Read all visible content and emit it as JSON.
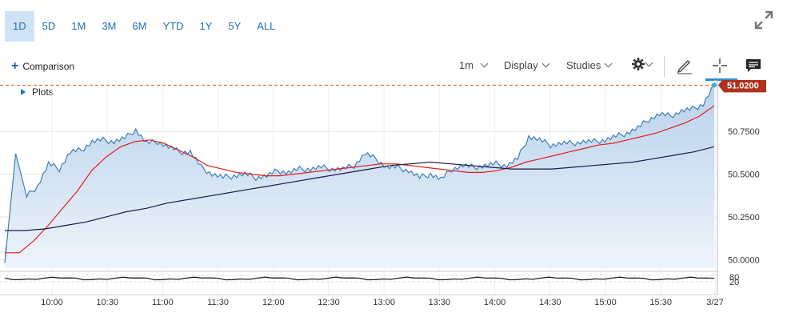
{
  "ranges": [
    "1D",
    "5D",
    "1M",
    "3M",
    "6M",
    "YTD",
    "1Y",
    "5Y",
    "ALL"
  ],
  "active_range": "1D",
  "toolbar": {
    "comparison_label": "Comparison",
    "interval_label": "1m",
    "display_label": "Display",
    "studies_label": "Studies"
  },
  "plots_label": "Plots",
  "price_badge": "51.0200",
  "y_ticks": [
    "50.7500",
    "50.5000",
    "50.2500",
    "50.0000"
  ],
  "lower_ticks": [
    "80",
    "20"
  ],
  "x_ticks": [
    "10:00",
    "10:30",
    "11:00",
    "11:30",
    "12:00",
    "12:30",
    "13:00",
    "13:30",
    "14:00",
    "14:30",
    "15:00",
    "15:30",
    "3/27"
  ],
  "colors": {
    "accent": "#2b8fd6",
    "price_line": "#3d7fb8",
    "ma_fast": "#e0201b",
    "ma_slow": "#1b1b4a",
    "badge": "#b0321c"
  },
  "chart_data": {
    "type": "area",
    "ylim": [
      49.95,
      51.05
    ],
    "last_price": 51.02,
    "series": [
      {
        "x": [
          "9:30",
          "9:36",
          "9:42",
          "9:48",
          "9:54",
          "10:00",
          "10:06",
          "10:12",
          "10:18",
          "10:24",
          "10:30",
          "10:36",
          "10:42",
          "10:48",
          "10:54",
          "11:00",
          "11:06",
          "11:12",
          "11:18",
          "11:24",
          "11:30",
          "11:36",
          "11:42",
          "11:48",
          "11:54",
          "12:00",
          "12:06",
          "12:12",
          "12:18",
          "12:24",
          "12:30",
          "12:36",
          "12:42",
          "12:48",
          "12:54",
          "13:00",
          "13:06",
          "13:12",
          "13:18",
          "13:24",
          "13:30",
          "13:36",
          "13:42",
          "13:48",
          "13:54",
          "14:00",
          "14:06",
          "14:12",
          "14:18",
          "14:24",
          "14:30",
          "14:36",
          "14:42",
          "14:48",
          "14:54",
          "15:00",
          "15:06",
          "15:12",
          "15:18",
          "15:24",
          "15:30",
          "15:36",
          "15:42",
          "15:48",
          "15:54",
          "16:00"
        ],
        "values": [
          49.98,
          50.62,
          50.37,
          50.43,
          50.56,
          50.53,
          50.63,
          50.64,
          50.69,
          50.7,
          50.69,
          50.71,
          50.76,
          50.68,
          50.69,
          50.66,
          50.63,
          50.63,
          50.54,
          50.5,
          50.48,
          50.49,
          50.5,
          50.48,
          50.49,
          50.52,
          50.51,
          50.53,
          50.53,
          50.54,
          50.53,
          50.53,
          50.55,
          50.62,
          50.59,
          50.54,
          50.54,
          50.52,
          50.48,
          50.5,
          50.47,
          50.53,
          50.55,
          50.54,
          50.55,
          50.56,
          50.55,
          50.59,
          50.72,
          50.7,
          50.67,
          50.68,
          50.68,
          50.69,
          50.69,
          50.7,
          50.72,
          50.74,
          50.77,
          50.82,
          50.85,
          50.84,
          50.87,
          50.88,
          50.91,
          51.02
        ]
      },
      {
        "values": [
          50.04,
          50.04,
          50.11,
          50.2,
          50.3,
          50.4,
          50.52,
          50.6,
          50.66,
          50.69,
          50.7,
          50.68,
          50.64,
          50.6,
          50.55,
          50.53,
          50.51,
          50.5,
          50.49,
          50.49,
          50.5,
          50.51,
          50.52,
          50.53,
          50.54,
          50.55,
          50.56,
          50.56,
          50.55,
          50.54,
          50.53,
          50.52,
          50.51,
          50.51,
          50.52,
          50.54,
          50.57,
          50.59,
          50.61,
          50.63,
          50.65,
          50.67,
          50.68,
          50.7,
          50.72,
          50.74,
          50.77,
          50.8,
          50.84,
          50.9
        ]
      },
      {
        "values": [
          50.17,
          50.17,
          50.18,
          50.2,
          50.22,
          50.25,
          50.28,
          50.3,
          50.33,
          50.35,
          50.37,
          50.39,
          50.41,
          50.43,
          50.45,
          50.47,
          50.49,
          50.51,
          50.53,
          50.55,
          50.56,
          50.57,
          50.56,
          50.55,
          50.54,
          50.53,
          50.53,
          50.53,
          50.54,
          50.55,
          50.56,
          50.57,
          50.59,
          50.61,
          50.63,
          50.66
        ]
      }
    ]
  }
}
